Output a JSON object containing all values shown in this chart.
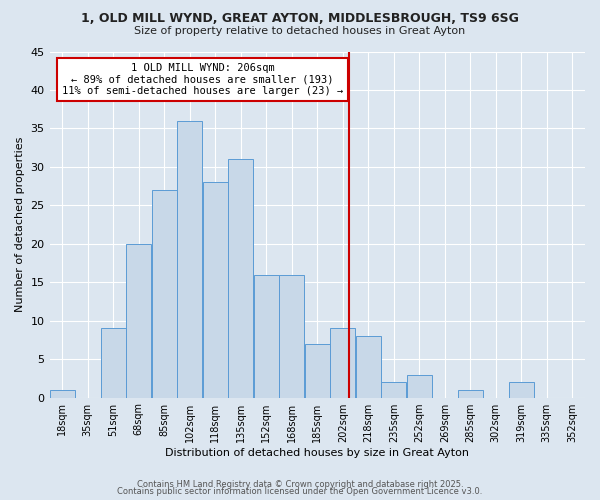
{
  "title1": "1, OLD MILL WYND, GREAT AYTON, MIDDLESBROUGH, TS9 6SG",
  "title2": "Size of property relative to detached houses in Great Ayton",
  "xlabel": "Distribution of detached houses by size in Great Ayton",
  "ylabel": "Number of detached properties",
  "bar_labels": [
    "18sqm",
    "35sqm",
    "51sqm",
    "68sqm",
    "85sqm",
    "102sqm",
    "118sqm",
    "135sqm",
    "152sqm",
    "168sqm",
    "185sqm",
    "202sqm",
    "218sqm",
    "235sqm",
    "252sqm",
    "269sqm",
    "285sqm",
    "302sqm",
    "319sqm",
    "335sqm",
    "352sqm"
  ],
  "bar_values": [
    1,
    0,
    9,
    20,
    27,
    36,
    28,
    31,
    16,
    16,
    7,
    9,
    8,
    2,
    3,
    0,
    1,
    0,
    2,
    0,
    0
  ],
  "bar_color": "#c8d8e8",
  "bar_edgecolor": "#5b9bd5",
  "vline_color": "#cc0000",
  "annotation_text": "1 OLD MILL WYND: 206sqm\n← 89% of detached houses are smaller (193)\n11% of semi-detached houses are larger (23) →",
  "annotation_box_edgecolor": "#cc0000",
  "background_color": "#dce6f0",
  "grid_color": "#ffffff",
  "ylim": [
    0,
    45
  ],
  "yticks": [
    0,
    5,
    10,
    15,
    20,
    25,
    30,
    35,
    40,
    45
  ],
  "footer_line1": "Contains HM Land Registry data © Crown copyright and database right 2025.",
  "footer_line2": "Contains public sector information licensed under the Open Government Licence v3.0.",
  "bin_width": 17,
  "vline_position": 11.5
}
